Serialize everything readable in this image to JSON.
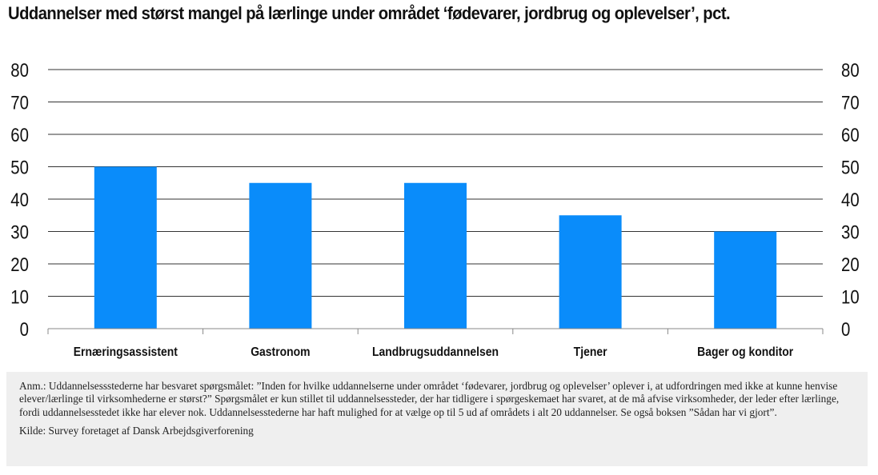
{
  "title": "Uddannelser med størst mangel på lærlinge under området ‘fødevarer, jordbrug og oplevelser’, pct.",
  "note": "Anm.: Uddannelsessstederne har besvaret spørgsmålet: ”Inden for hvilke uddannelserne under området ‘fødevarer, jordbrug og oplevelser’ oplever i, at udfordringen med ikke at kunne henvise elever/lærlinge til virksomhederne er størst?” Spørgsmålet er kun stillet til uddannelsessteder, der har tidligere i spørgeskemaet har svaret, at de må afvise virksomheder, der leder efter lærlinge, fordi uddannelsesstedet ikke har elever nok. Uddannelsesstederne har haft mulighed for at vælge op til 5 ud af områdets i alt 20 uddannelser. Se også boksen ”Sådan har vi gjort”.",
  "source": "Kilde: Survey foretaget af Dansk Arbejdsgiverforening",
  "chart_data": {
    "type": "bar",
    "title": "Uddannelser med størst mangel på lærlinge under området ‘fødevarer, jordbrug og oplevelser’, pct.",
    "categories": [
      "Ernæringsassistent",
      "Gastronom",
      "Landbrugsuddannelsen",
      "Tjener",
      "Bager og konditor"
    ],
    "values": [
      50,
      45,
      45,
      35,
      30
    ],
    "ylim": [
      0,
      80
    ],
    "yticks": [
      0,
      10,
      20,
      30,
      40,
      50,
      60,
      70,
      80
    ],
    "ytick_labels": [
      "0",
      "10",
      "20",
      "30",
      "40",
      "50",
      "60",
      "70",
      "80"
    ],
    "y_axis_both_sides": true,
    "grid": true,
    "bar_color": "#0a8cfa",
    "grid_color": "#333333"
  }
}
